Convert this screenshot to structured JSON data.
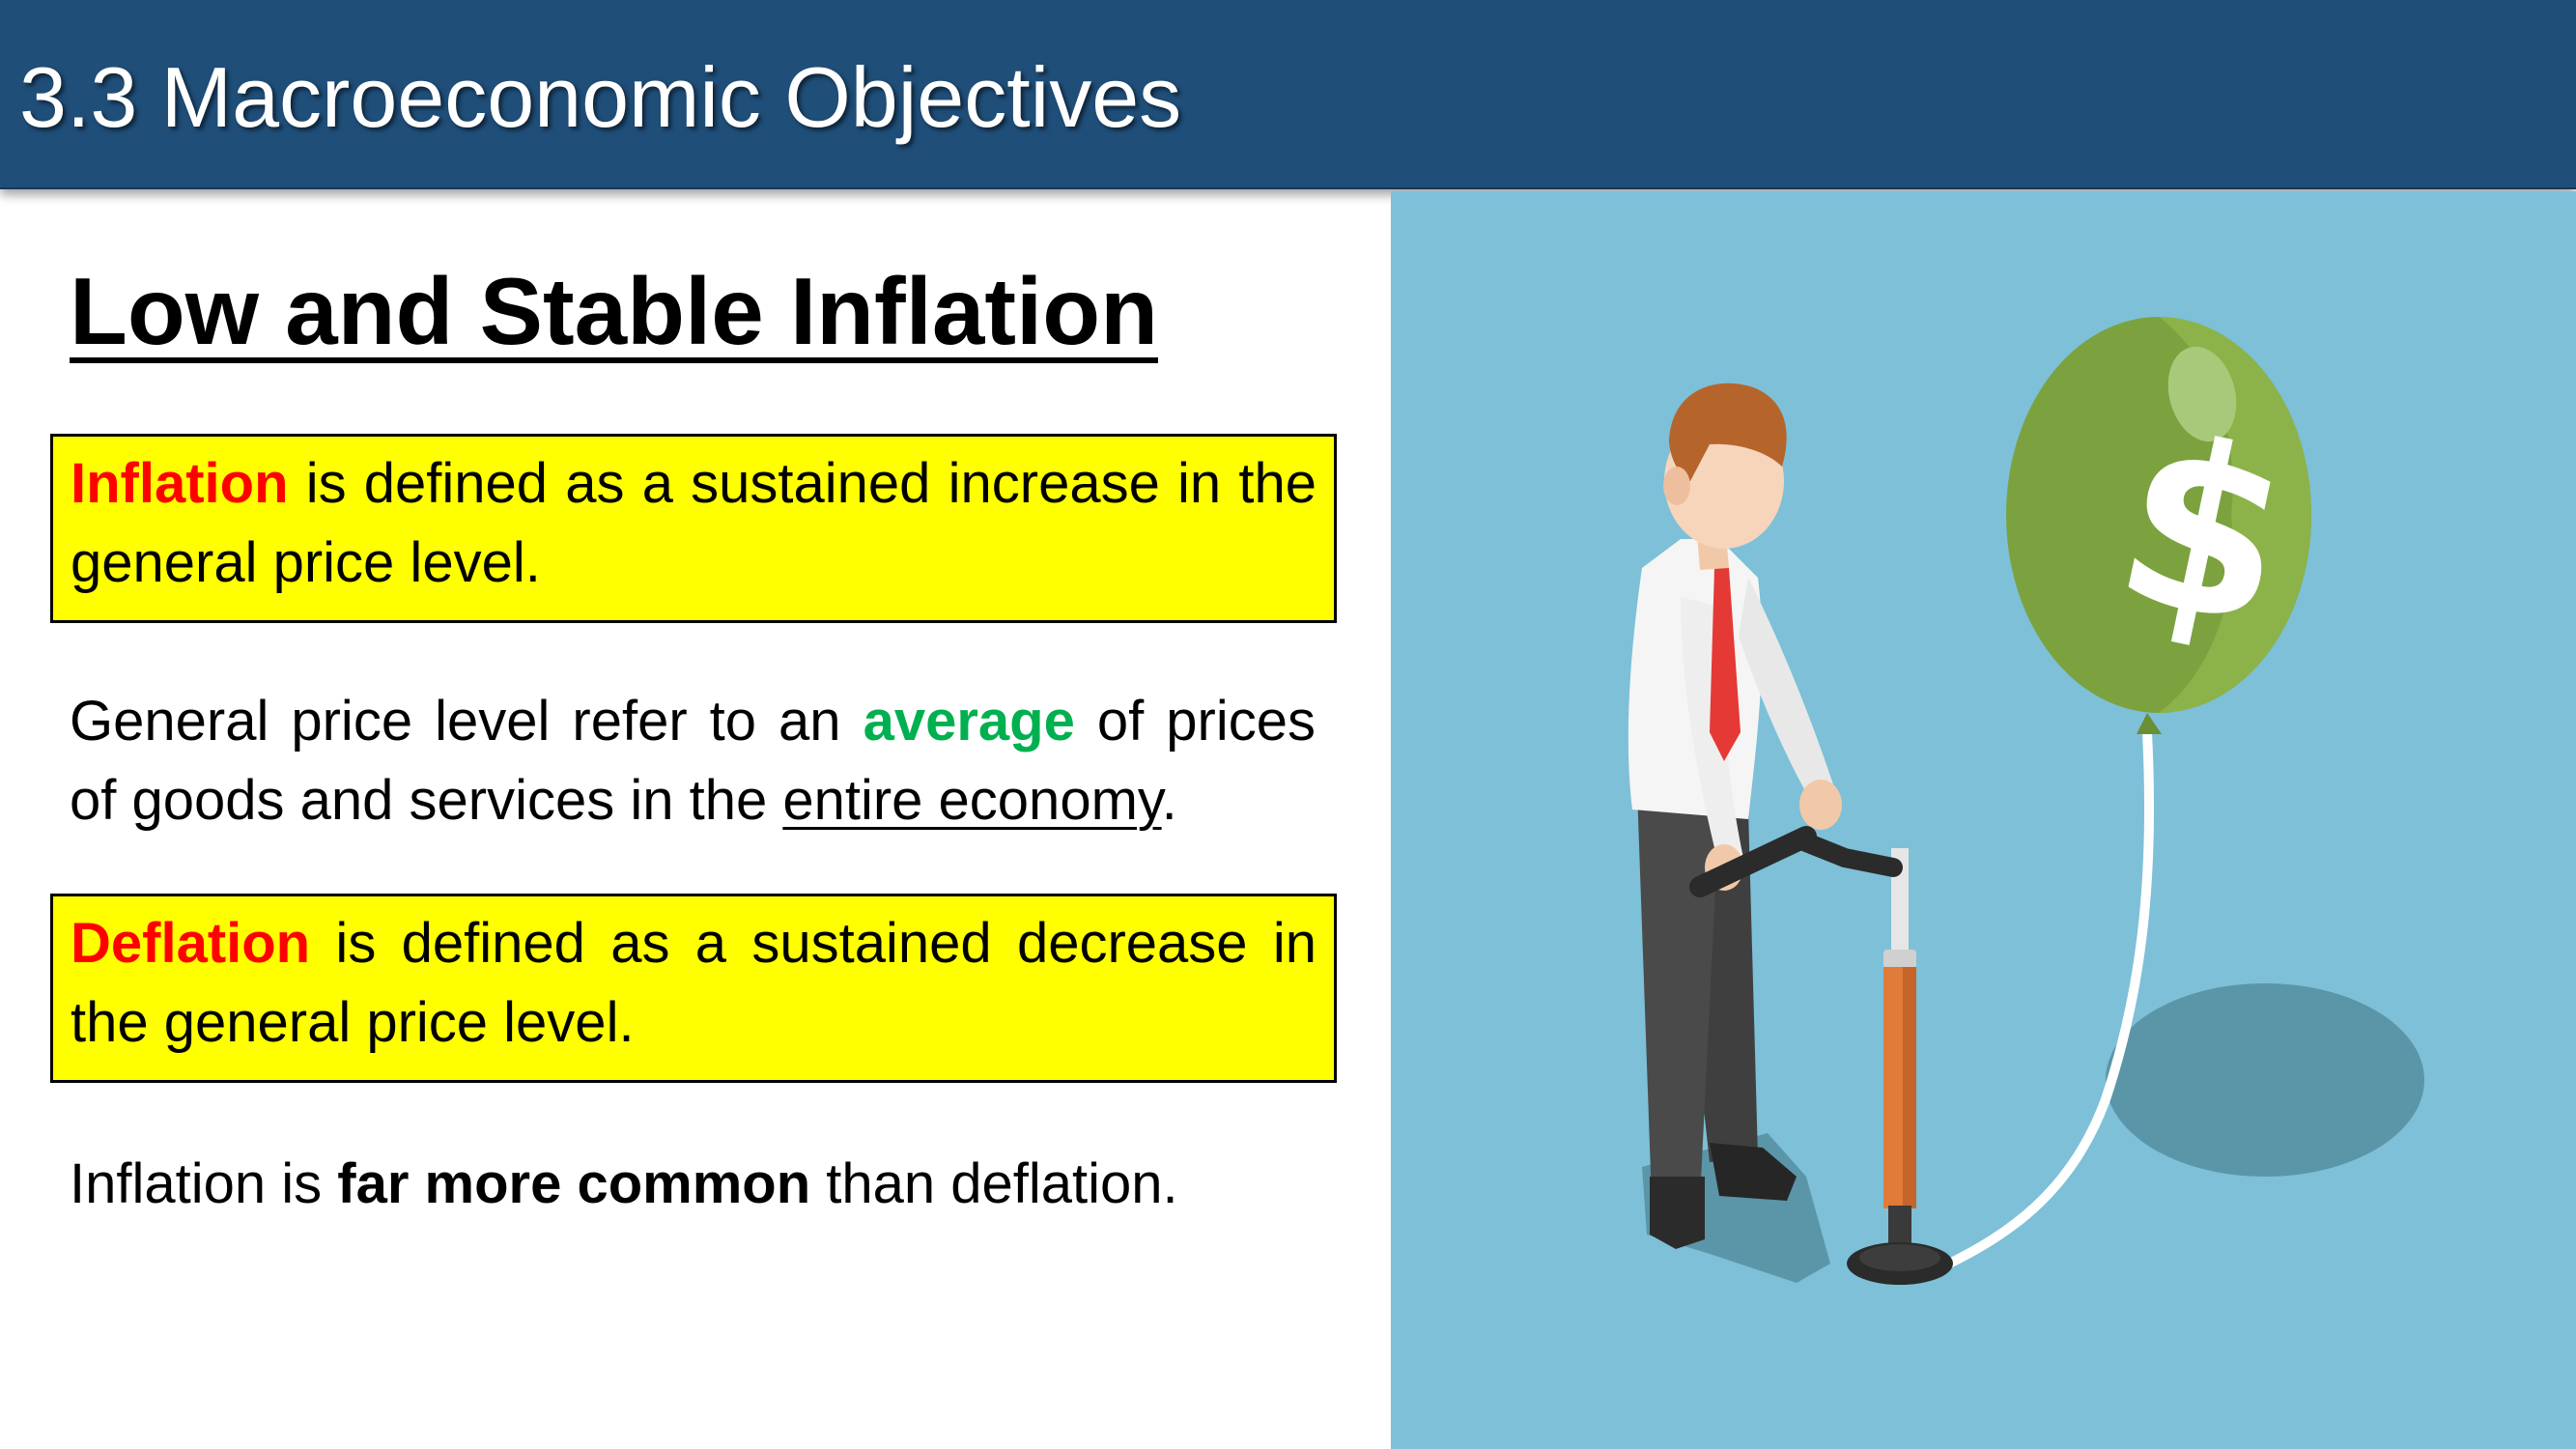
{
  "header": {
    "title": "3.3 Macroeconomic Objectives"
  },
  "section": {
    "heading": "Low and Stable Inflation"
  },
  "inflation_box": {
    "term": "Inflation",
    "rest": " is defined as a sustained increase in the general price level."
  },
  "general_price": {
    "part1": "General price level refer to an ",
    "highlight": "average",
    "part2": " of prices of goods and services in the ",
    "underlined": "entire economy",
    "part3": "."
  },
  "deflation_box": {
    "term": "Deflation",
    "rest": " is defined as a sustained decrease in the general price level."
  },
  "comparison": {
    "part1": "Inflation is ",
    "bold": "far more common",
    "part2": " than deflation."
  },
  "illustration": {
    "balloon_symbol": "$",
    "colors": {
      "background": "#7dc0d8",
      "balloon": "#7ba23f",
      "tie": "#e53935",
      "pump": "#e07b39"
    }
  }
}
